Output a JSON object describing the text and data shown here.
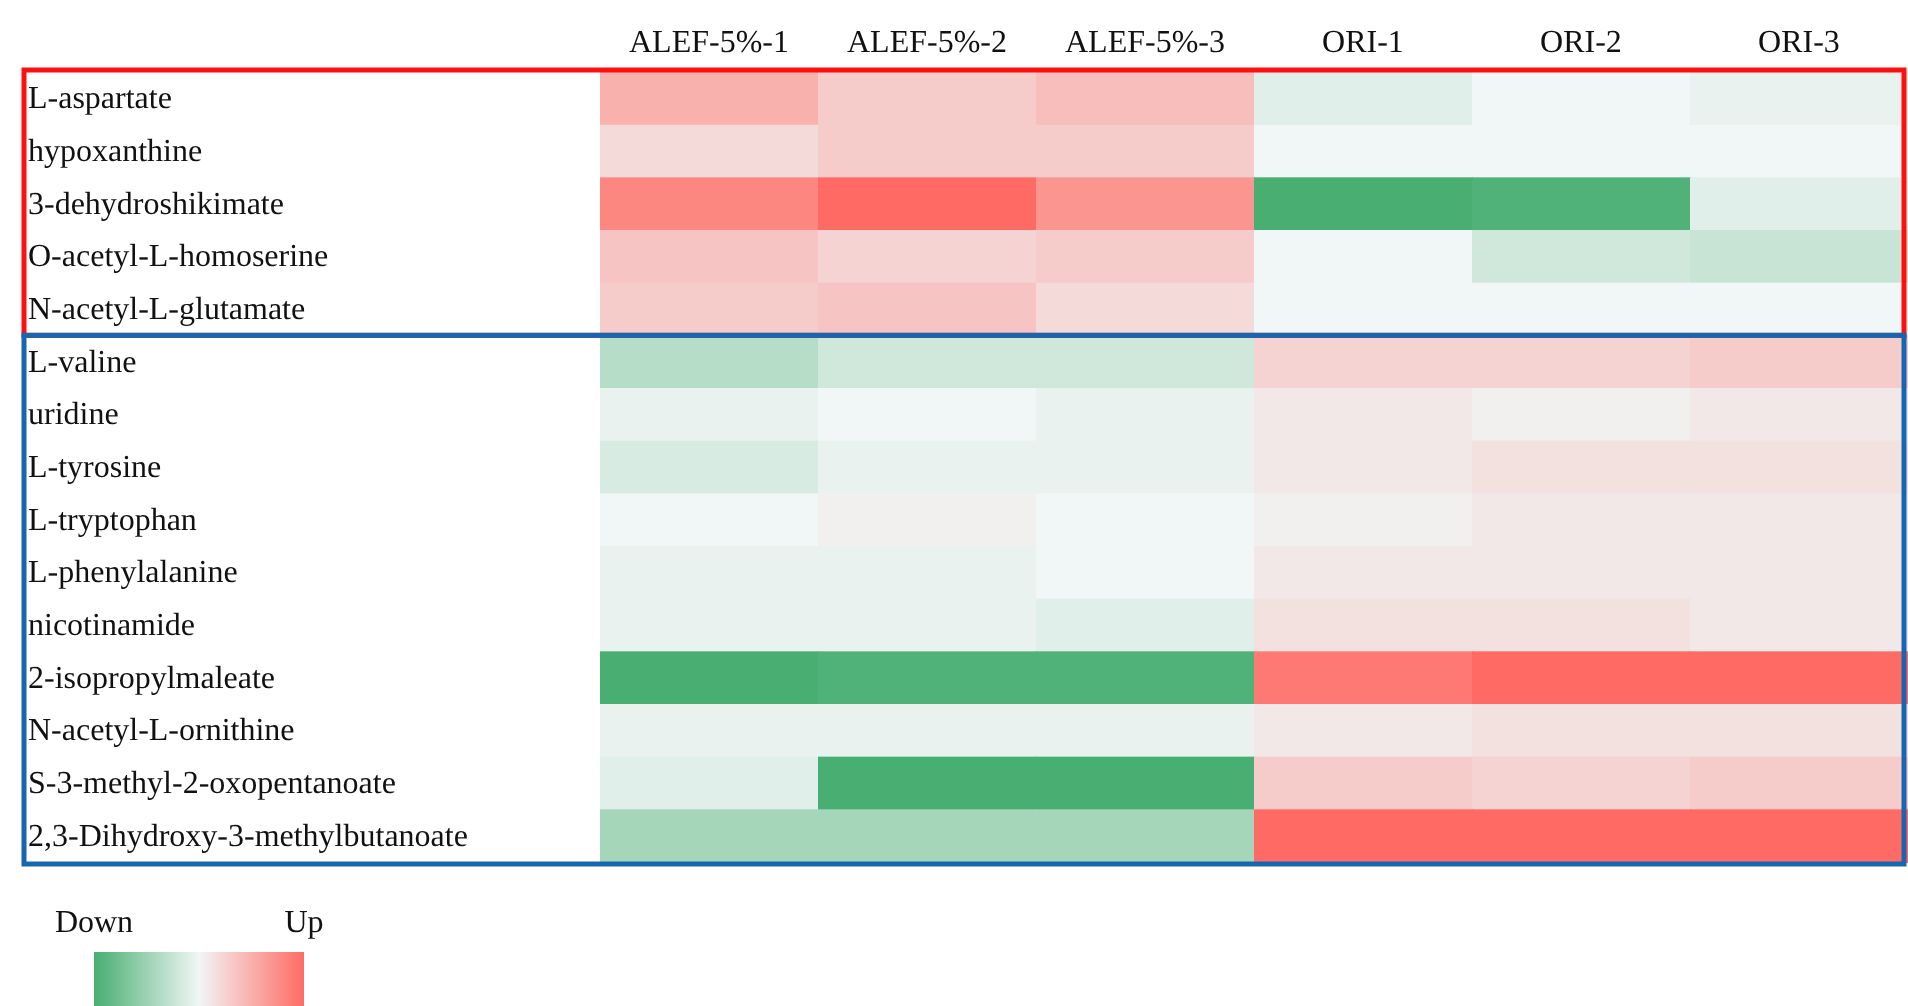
{
  "chart_data": {
    "type": "heatmap",
    "categories": [
      "ALEF-5%-1",
      "ALEF-5%-2",
      "ALEF-5%-3",
      "ORI-1",
      "ORI-2",
      "ORI-3"
    ],
    "y_categories": [
      "L-aspartate",
      "hypoxanthine",
      "3-dehydroshikimate",
      "O-acetyl-L-homoserine",
      "N-acetyl-L-glutamate",
      "L-valine",
      "uridine",
      "L-tyrosine",
      "L-tryptophan",
      "L-phenylalanine",
      "nicotinamide",
      "2-isopropylmaleate",
      "N-acetyl-L-ornithine",
      "S-3-methyl-2-oxopentanoate",
      "2,3-Dihydroxy-3-methylbutanoate"
    ],
    "cells": [
      [
        0.5,
        0.3,
        0.4,
        -0.1,
        0,
        -0.05
      ],
      [
        0.2,
        0.3,
        0.3,
        0,
        0,
        0
      ],
      [
        0.8,
        1,
        0.7,
        -1,
        -0.95,
        -0.1
      ],
      [
        0.35,
        0.25,
        0.3,
        0,
        -0.2,
        -0.25
      ],
      [
        0.3,
        0.35,
        0.2,
        0,
        0,
        0
      ],
      [
        -0.35,
        -0.2,
        -0.2,
        0.25,
        0.25,
        0.3
      ],
      [
        -0.05,
        0,
        -0.05,
        0.1,
        0.05,
        0.1
      ],
      [
        -0.15,
        -0.05,
        -0.05,
        0.1,
        0.15,
        0.15
      ],
      [
        0,
        0.05,
        0,
        0.05,
        0.1,
        0.1
      ],
      [
        -0.05,
        -0.05,
        0,
        0.1,
        0.1,
        0.1
      ],
      [
        -0.05,
        -0.05,
        -0.1,
        0.15,
        0.15,
        0.1
      ],
      [
        -1,
        -0.95,
        -0.95,
        0.9,
        1,
        1
      ],
      [
        -0.05,
        -0.05,
        -0.05,
        0.1,
        0.15,
        0.15
      ],
      [
        -0.1,
        -1,
        -1,
        0.3,
        0.25,
        0.3
      ],
      [
        -0.45,
        -0.45,
        -0.45,
        1,
        1,
        1
      ]
    ],
    "clim": [
      -1,
      1
    ],
    "cticks": [
      {
        "value": -1,
        "label": "Down"
      },
      {
        "value": 1,
        "label": "Up"
      }
    ]
  }
}
